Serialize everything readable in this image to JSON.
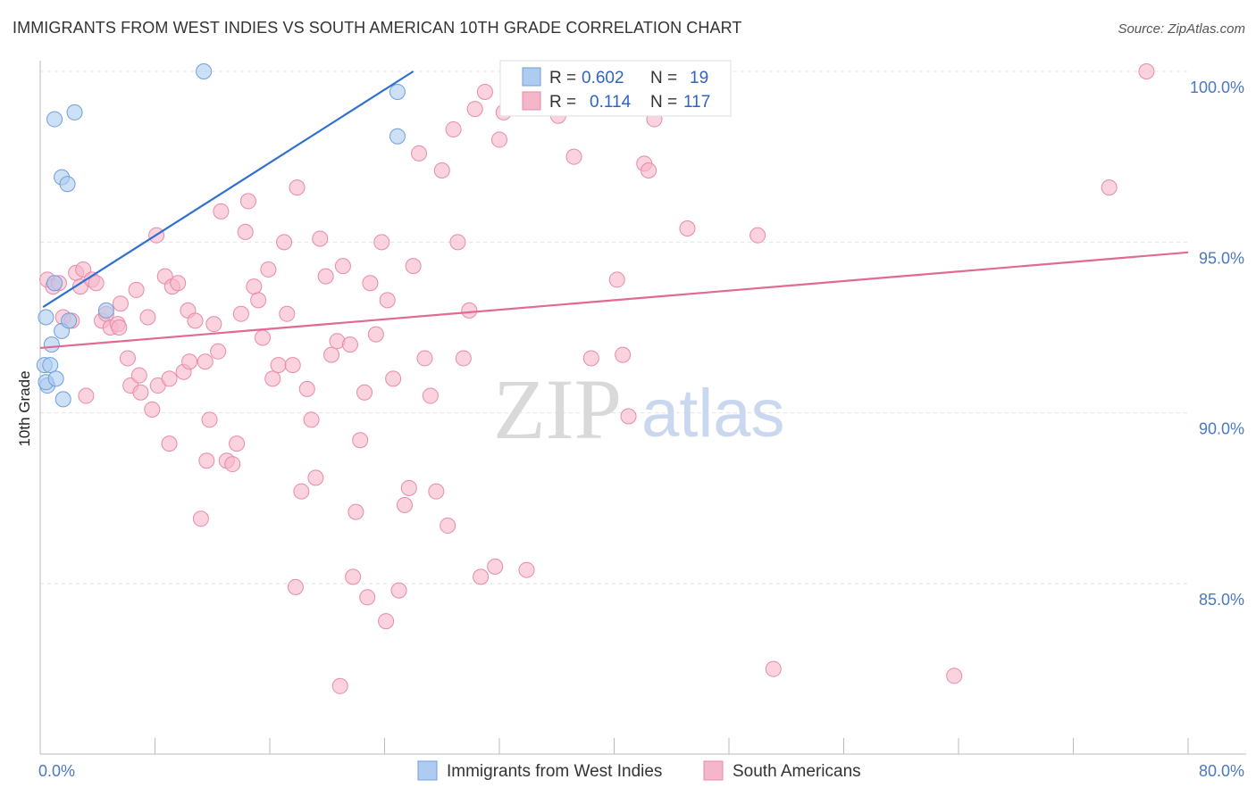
{
  "header": {
    "title": "IMMIGRANTS FROM WEST INDIES VS SOUTH AMERICAN 10TH GRADE CORRELATION CHART",
    "source": "Source: ZipAtlas.com"
  },
  "watermark": {
    "zip": "ZIP",
    "atlas": "atlas"
  },
  "legend": {
    "rows": [
      {
        "r_label": "R =",
        "r_value": "0.602",
        "n_label": "N =",
        "n_value": "19",
        "color": "#aecbf0"
      },
      {
        "r_label": "R =",
        "r_value": "0.114",
        "n_label": "N =",
        "n_value": "117",
        "color": "#f6b6ca"
      }
    ]
  },
  "bottom_legend": [
    {
      "label": "Immigrants from West Indies",
      "color": "#aecbf0"
    },
    {
      "label": "South Americans",
      "color": "#f6b6ca"
    }
  ],
  "chart_data": {
    "type": "scatter",
    "title": "IMMIGRANTS FROM WEST INDIES VS SOUTH AMERICAN 10TH GRADE CORRELATION CHART",
    "xlabel": "",
    "ylabel": "10th Grade",
    "xlim": [
      0,
      80
    ],
    "ylim": [
      80.5,
      100.5
    ],
    "x_tick_labels": [
      {
        "value": 0,
        "label": "0.0%"
      },
      {
        "value": 80,
        "label": "80.0%"
      }
    ],
    "y_tick_labels": [
      {
        "value": 100,
        "label": "100.0%"
      },
      {
        "value": 95,
        "label": "95.0%"
      },
      {
        "value": 90,
        "label": "90.0%"
      },
      {
        "value": 85,
        "label": "85.0%"
      }
    ],
    "grid": true,
    "legend_position": "top-center",
    "series": [
      {
        "name": "Immigrants from West Indies",
        "color": "#aecbf0",
        "stroke": "#6e9fdc",
        "trend_color": "#2f6fcf",
        "trend": [
          [
            0.2,
            93.1
          ],
          [
            26.0,
            100.0
          ]
        ],
        "points": [
          [
            0.4,
            92.8
          ],
          [
            0.3,
            91.4
          ],
          [
            0.5,
            90.8
          ],
          [
            0.4,
            90.9
          ],
          [
            0.7,
            91.4
          ],
          [
            0.8,
            92.0
          ],
          [
            1.0,
            98.6
          ],
          [
            2.4,
            98.8
          ],
          [
            1.5,
            96.9
          ],
          [
            1.9,
            96.7
          ],
          [
            1.0,
            93.8
          ],
          [
            1.5,
            92.4
          ],
          [
            2.0,
            92.7
          ],
          [
            1.1,
            91.0
          ],
          [
            1.6,
            90.4
          ],
          [
            4.6,
            93.0
          ],
          [
            11.4,
            100.0
          ],
          [
            24.9,
            99.4
          ],
          [
            24.9,
            98.1
          ]
        ]
      },
      {
        "name": "South Americans",
        "color": "#f6b6ca",
        "stroke": "#e88aa8",
        "trend_color": "#e06a94",
        "trend": [
          [
            0.0,
            91.9
          ],
          [
            80.0,
            94.7
          ]
        ],
        "points": [
          [
            0.5,
            93.9
          ],
          [
            0.9,
            93.7
          ],
          [
            1.3,
            93.8
          ],
          [
            1.6,
            92.8
          ],
          [
            2.2,
            92.7
          ],
          [
            2.5,
            94.1
          ],
          [
            2.8,
            93.7
          ],
          [
            3.0,
            94.2
          ],
          [
            3.6,
            93.9
          ],
          [
            3.9,
            93.8
          ],
          [
            4.3,
            92.7
          ],
          [
            4.6,
            92.9
          ],
          [
            4.9,
            92.5
          ],
          [
            5.4,
            92.6
          ],
          [
            5.6,
            93.2
          ],
          [
            6.1,
            91.6
          ],
          [
            6.3,
            90.8
          ],
          [
            6.7,
            93.6
          ],
          [
            6.9,
            91.1
          ],
          [
            7.5,
            92.8
          ],
          [
            7.8,
            90.1
          ],
          [
            8.1,
            95.2
          ],
          [
            8.2,
            90.8
          ],
          [
            8.7,
            94.0
          ],
          [
            9.0,
            91.0
          ],
          [
            9.2,
            93.7
          ],
          [
            9.6,
            93.8
          ],
          [
            10.0,
            91.2
          ],
          [
            10.3,
            93.0
          ],
          [
            10.4,
            91.5
          ],
          [
            10.8,
            92.7
          ],
          [
            11.2,
            86.9
          ],
          [
            11.5,
            91.5
          ],
          [
            11.8,
            89.8
          ],
          [
            12.1,
            92.6
          ],
          [
            12.4,
            91.8
          ],
          [
            12.6,
            95.9
          ],
          [
            13.0,
            88.6
          ],
          [
            13.4,
            88.5
          ],
          [
            13.7,
            89.1
          ],
          [
            14.0,
            92.9
          ],
          [
            14.3,
            95.3
          ],
          [
            14.5,
            96.2
          ],
          [
            14.9,
            93.7
          ],
          [
            15.2,
            93.3
          ],
          [
            15.5,
            92.2
          ],
          [
            15.9,
            94.2
          ],
          [
            16.2,
            91.0
          ],
          [
            16.6,
            91.4
          ],
          [
            17.0,
            95.0
          ],
          [
            17.2,
            92.9
          ],
          [
            17.6,
            91.4
          ],
          [
            17.9,
            96.6
          ],
          [
            18.2,
            87.7
          ],
          [
            18.6,
            90.7
          ],
          [
            18.9,
            89.8
          ],
          [
            19.2,
            88.1
          ],
          [
            19.5,
            95.1
          ],
          [
            19.9,
            94.0
          ],
          [
            20.3,
            91.7
          ],
          [
            20.7,
            92.1
          ],
          [
            21.1,
            94.3
          ],
          [
            21.6,
            92.0
          ],
          [
            22.0,
            87.1
          ],
          [
            22.3,
            89.2
          ],
          [
            22.6,
            90.6
          ],
          [
            23.0,
            93.8
          ],
          [
            23.4,
            92.3
          ],
          [
            23.8,
            95.0
          ],
          [
            24.2,
            93.3
          ],
          [
            24.6,
            91.0
          ],
          [
            25.0,
            84.8
          ],
          [
            25.4,
            87.3
          ],
          [
            25.7,
            87.8
          ],
          [
            26.0,
            94.3
          ],
          [
            26.4,
            97.6
          ],
          [
            26.8,
            91.6
          ],
          [
            27.2,
            90.5
          ],
          [
            27.6,
            87.7
          ],
          [
            28.0,
            97.1
          ],
          [
            28.4,
            86.7
          ],
          [
            28.8,
            98.3
          ],
          [
            29.1,
            95.0
          ],
          [
            29.5,
            91.6
          ],
          [
            29.9,
            93.0
          ],
          [
            30.3,
            98.9
          ],
          [
            30.7,
            85.2
          ],
          [
            31.0,
            99.4
          ],
          [
            31.7,
            85.5
          ],
          [
            32.0,
            98.0
          ],
          [
            32.3,
            98.8
          ],
          [
            32.7,
            100.0
          ],
          [
            36.1,
            98.7
          ],
          [
            37.2,
            97.5
          ],
          [
            38.7,
            99.7
          ],
          [
            39.6,
            100.0
          ],
          [
            40.6,
            91.7
          ],
          [
            41.0,
            89.9
          ],
          [
            42.1,
            97.3
          ],
          [
            42.4,
            97.1
          ],
          [
            42.8,
            98.6
          ],
          [
            42.0,
            100.0
          ],
          [
            45.1,
            95.4
          ],
          [
            50.0,
            95.2
          ],
          [
            51.1,
            82.5
          ],
          [
            63.7,
            82.3
          ],
          [
            74.5,
            96.6
          ],
          [
            77.1,
            100.0
          ],
          [
            9.0,
            89.1
          ],
          [
            17.8,
            84.9
          ],
          [
            20.9,
            82.0
          ],
          [
            21.8,
            85.2
          ],
          [
            22.8,
            84.6
          ],
          [
            24.1,
            83.9
          ],
          [
            11.6,
            88.6
          ],
          [
            7.0,
            90.6
          ],
          [
            5.5,
            92.5
          ],
          [
            3.2,
            90.5
          ],
          [
            38.4,
            91.6
          ],
          [
            40.2,
            93.9
          ],
          [
            33.9,
            85.4
          ]
        ]
      }
    ]
  }
}
